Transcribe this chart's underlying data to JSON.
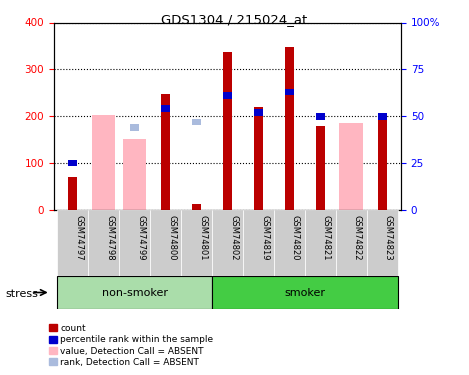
{
  "title": "GDS1304 / 215024_at",
  "samples": [
    "GSM74797",
    "GSM74798",
    "GSM74799",
    "GSM74800",
    "GSM74801",
    "GSM74802",
    "GSM74819",
    "GSM74820",
    "GSM74821",
    "GSM74822",
    "GSM74823"
  ],
  "count_values": [
    70,
    null,
    null,
    248,
    12,
    337,
    220,
    348,
    180,
    null,
    198
  ],
  "rank_values": [
    25,
    null,
    null,
    54,
    null,
    61,
    52,
    63,
    50,
    null,
    50
  ],
  "absent_value_values": [
    null,
    202,
    152,
    null,
    null,
    null,
    null,
    null,
    null,
    185,
    null
  ],
  "absent_rank_values": [
    null,
    null,
    44,
    null,
    47,
    null,
    null,
    null,
    null,
    null,
    null
  ],
  "ylim_left": [
    0,
    400
  ],
  "ylim_right": [
    0,
    100
  ],
  "yticks_left": [
    0,
    100,
    200,
    300,
    400
  ],
  "yticks_right": [
    0,
    25,
    50,
    75,
    100
  ],
  "ytick_labels_right": [
    "0",
    "25",
    "50",
    "75",
    "100%"
  ],
  "groups": [
    {
      "label": "non-smoker",
      "start": 0,
      "end": 5
    },
    {
      "label": "smoker",
      "start": 5,
      "end": 11
    }
  ],
  "stress_label": "stress",
  "count_color": "#BB0000",
  "rank_color": "#0000CC",
  "absent_value_color": "#FFB6C1",
  "absent_rank_color": "#AABBDD",
  "group_color_light": "#AADDAA",
  "group_color_dark": "#44CC44",
  "tick_area_color": "#CCCCCC"
}
